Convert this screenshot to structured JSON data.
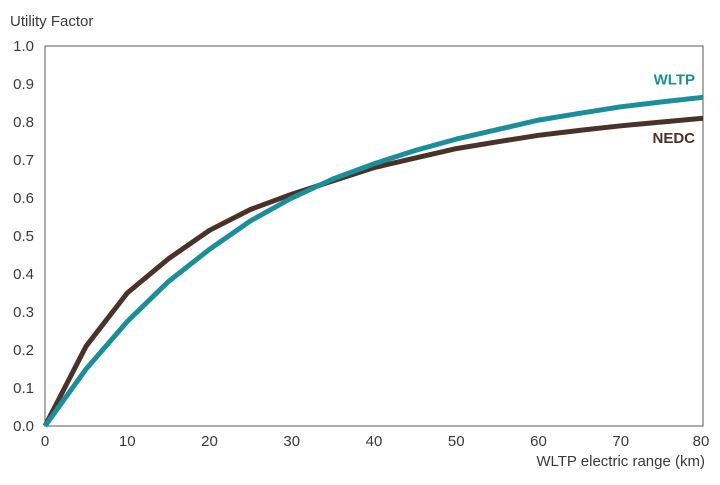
{
  "chart_data": {
    "type": "line",
    "title": "",
    "xlabel": "WLTP electric range (km)",
    "ylabel": "Utility Factor",
    "xlim": [
      0,
      80
    ],
    "ylim": [
      0,
      1.0
    ],
    "x_ticks": [
      "0",
      "10",
      "20",
      "30",
      "40",
      "50",
      "60",
      "70",
      "80"
    ],
    "y_ticks": [
      "0.0",
      "0.1",
      "0.2",
      "0.3",
      "0.4",
      "0.5",
      "0.6",
      "0.7",
      "0.8",
      "0.9",
      "1.0"
    ],
    "grid": false,
    "legend": "inline labels at right end of lines",
    "series": [
      {
        "name": "WLTP",
        "color": "#1a8f9c",
        "x": [
          0,
          5,
          10,
          15,
          20,
          25,
          30,
          35,
          40,
          45,
          50,
          55,
          60,
          65,
          70,
          75,
          80
        ],
        "y": [
          0.0,
          0.15,
          0.275,
          0.38,
          0.465,
          0.54,
          0.6,
          0.65,
          0.69,
          0.725,
          0.755,
          0.78,
          0.805,
          0.823,
          0.84,
          0.853,
          0.865
        ]
      },
      {
        "name": "NEDC",
        "color": "#4a3228",
        "x": [
          0,
          5,
          10,
          15,
          20,
          25,
          30,
          35,
          40,
          45,
          50,
          55,
          60,
          65,
          70,
          75,
          80
        ],
        "y": [
          0.0,
          0.21,
          0.35,
          0.44,
          0.515,
          0.57,
          0.61,
          0.645,
          0.68,
          0.705,
          0.73,
          0.748,
          0.765,
          0.778,
          0.79,
          0.8,
          0.81
        ]
      }
    ]
  }
}
